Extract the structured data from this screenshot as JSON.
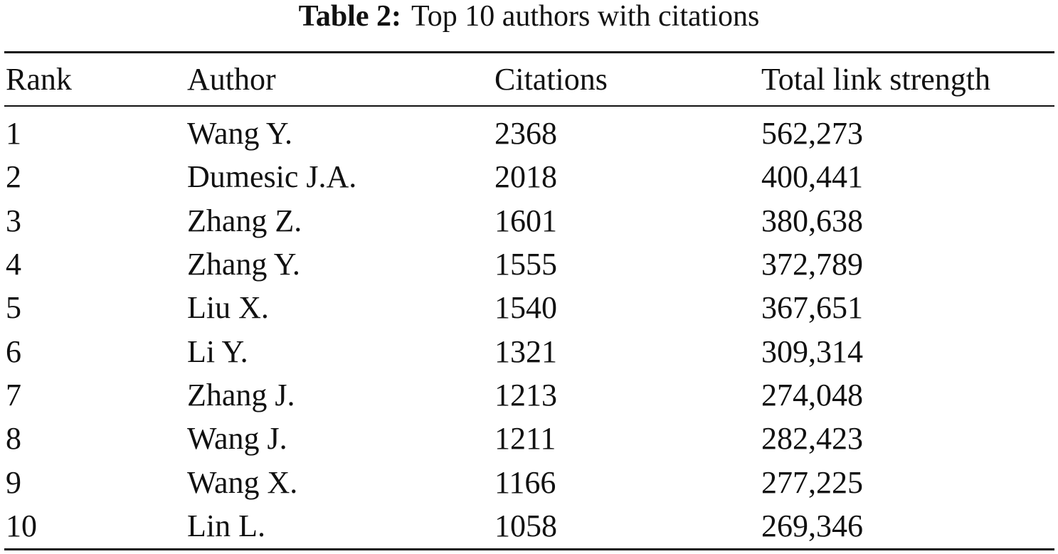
{
  "table": {
    "caption_label": "Table 2:",
    "caption_text": "Top 10 authors with citations",
    "header": [
      "Rank",
      "Author",
      "Citations",
      "Total link strength"
    ],
    "rows": [
      [
        "1",
        "Wang Y.",
        "2368",
        "562,273"
      ],
      [
        "2",
        "Dumesic J.A.",
        "2018",
        "400,441"
      ],
      [
        "3",
        "Zhang Z.",
        "1601",
        "380,638"
      ],
      [
        "4",
        "Zhang Y.",
        "1555",
        "372,789"
      ],
      [
        "5",
        "Liu X.",
        "1540",
        "367,651"
      ],
      [
        "6",
        "Li Y.",
        "1321",
        "309,314"
      ],
      [
        "7",
        "Zhang J.",
        "1213",
        "274,048"
      ],
      [
        "8",
        "Wang J.",
        "1211",
        "282,423"
      ],
      [
        "9",
        "Wang X.",
        "1166",
        "277,225"
      ],
      [
        "10",
        "Lin L.",
        "1058",
        "269,346"
      ]
    ]
  }
}
